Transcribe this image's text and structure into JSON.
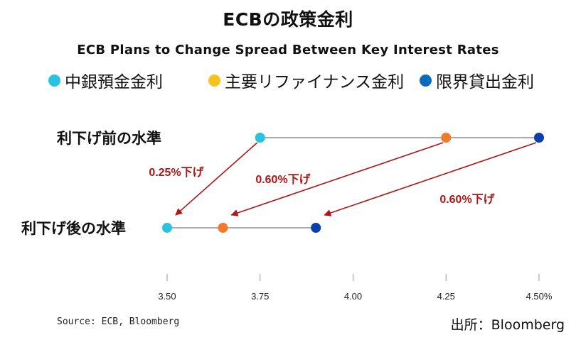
{
  "title": "ECBの政策金利",
  "subtitle": "ECB Plans to Change Spread Between Key Interest Rates",
  "source": "Source: ECB, Bloomberg",
  "credit": "出所：Bloomberg",
  "chart_data": {
    "type": "dumbbell",
    "series": [
      {
        "name": "中銀預金金利",
        "color": "#29c3e0",
        "values": [
          3.75,
          3.5
        ]
      },
      {
        "name": "主要リファイナンス金利",
        "color": "#f47a2b",
        "values": [
          4.25,
          3.65
        ]
      },
      {
        "name": "限界貸出金利",
        "color": "#0a3fae",
        "values": [
          4.5,
          3.9
        ]
      }
    ],
    "legend_markers": [
      "#29c3e0",
      "#f8c21c",
      "#0a6ac0"
    ],
    "categories": [
      "利下げ前の水準",
      "利下げ後の水準"
    ],
    "x_ticks": [
      "3.50",
      "3.75",
      "4.00",
      "4.25",
      "4.50%"
    ],
    "x_tick_values": [
      3.5,
      3.75,
      4.0,
      4.25,
      4.5
    ],
    "xlim": [
      3.5,
      4.5
    ],
    "annotations": [
      {
        "label": "0.25%下げ",
        "from": 3.75,
        "to": 3.5
      },
      {
        "label": "0.60%下げ",
        "from": 4.25,
        "to": 3.65
      },
      {
        "label": "0.60%下げ",
        "from": 4.5,
        "to": 3.9
      }
    ],
    "line_color": "#aaaaaa",
    "arrow_color": "#b01515",
    "legend_position": "top",
    "grid": false
  }
}
